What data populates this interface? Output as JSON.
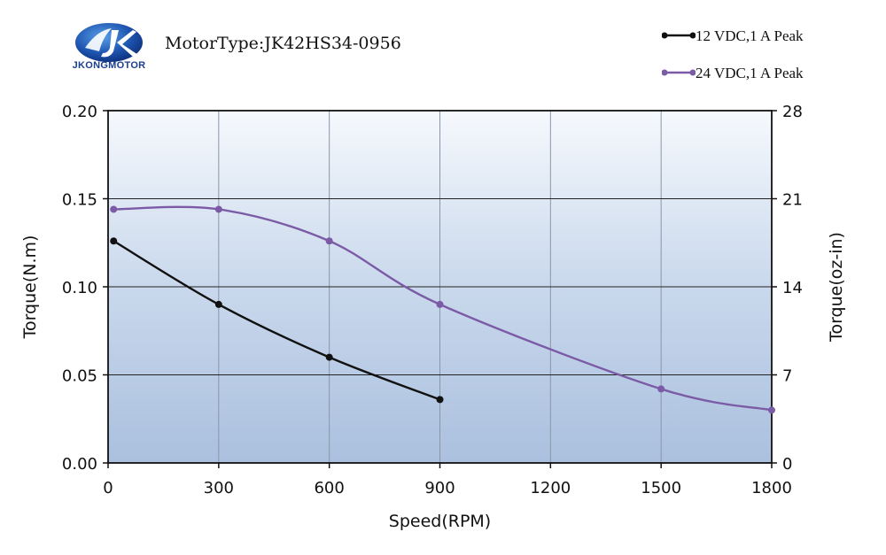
{
  "brand": {
    "name": "JKONGMOTOR",
    "colors": {
      "primary": "#1a3f8f",
      "accent": "#2e6fc7"
    }
  },
  "header": {
    "motor_type": "MotorType:JK42HS34-0956"
  },
  "legend": [
    {
      "label": "12 VDC,1 A Peak",
      "color": "#111111"
    },
    {
      "label": "24 VDC,1 A Peak",
      "color": "#7b5aa6"
    }
  ],
  "chart_data": {
    "type": "line",
    "title": "MotorType:JK42HS34-0956",
    "xlabel": "Speed(RPM)",
    "ylabel": "Torque(N.m)",
    "y2label": "Torque(oz-in)",
    "xlim": [
      0,
      1800
    ],
    "ylim": [
      0,
      0.2
    ],
    "y2lim": [
      0,
      28
    ],
    "x_ticks": [
      "0",
      "300",
      "600",
      "900",
      "1200",
      "1500",
      "1800"
    ],
    "y_ticks": [
      "0.00",
      "0.05",
      "0.10",
      "0.15",
      "0.20"
    ],
    "y2_ticks": [
      "0",
      "7",
      "14",
      "21",
      "28"
    ],
    "grid": true,
    "legend_position": "top-right",
    "series": [
      {
        "name": "12 VDC,1 A Peak",
        "color": "#111111",
        "x": [
          15,
          300,
          600,
          900
        ],
        "y": [
          0.126,
          0.09,
          0.06,
          0.036
        ]
      },
      {
        "name": "24 VDC,1 A Peak",
        "color": "#7b5aa6",
        "x": [
          15,
          300,
          600,
          900,
          1500,
          1800
        ],
        "y": [
          0.144,
          0.144,
          0.126,
          0.09,
          0.042,
          0.03
        ]
      }
    ]
  }
}
